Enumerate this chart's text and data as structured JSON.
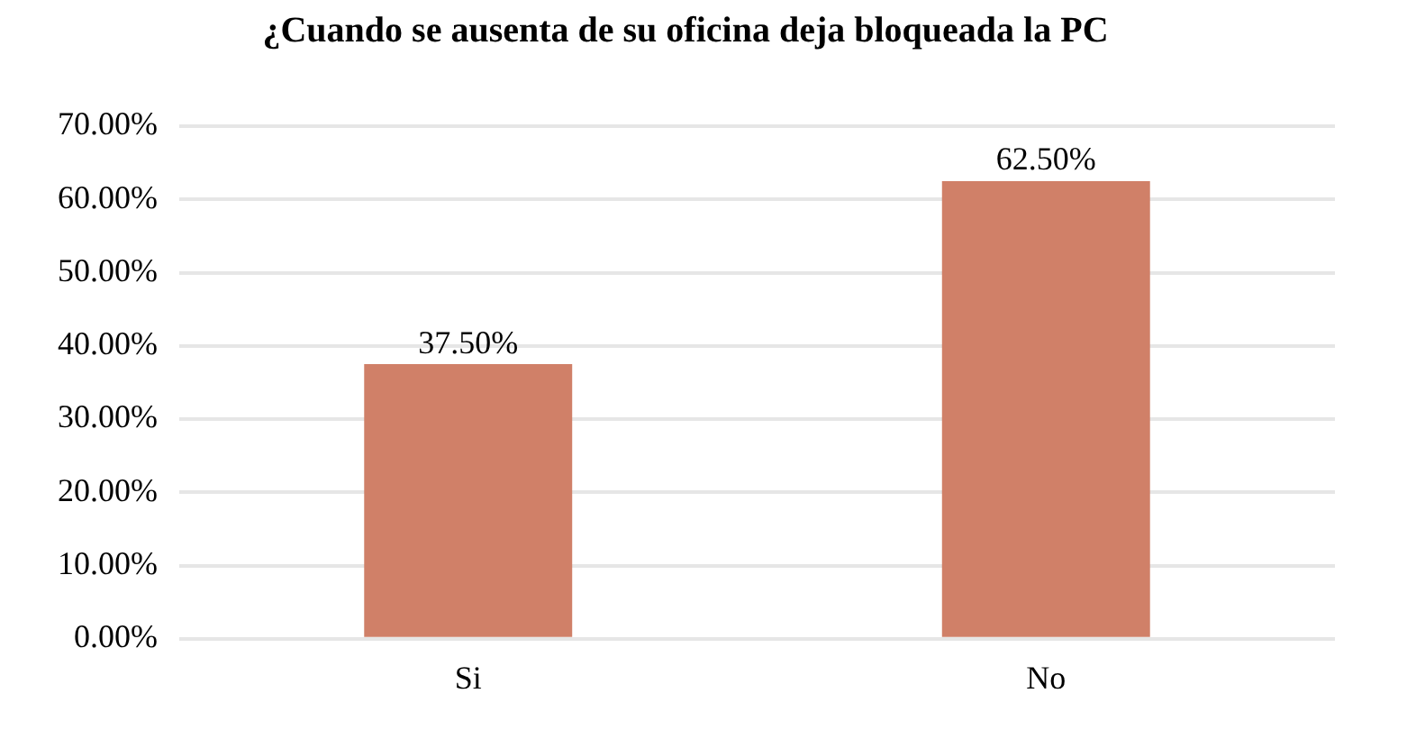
{
  "chart_data": {
    "type": "bar",
    "title": "¿Cuando se ausenta de su oficina deja bloqueada la PC",
    "categories": [
      "Si",
      "No"
    ],
    "values": [
      37.5,
      62.5
    ],
    "value_labels": [
      "37.50%",
      "62.50%"
    ],
    "color": "#d08068",
    "ylim": [
      0,
      70
    ],
    "yticks": [
      {
        "value": 0,
        "label": "0.00%"
      },
      {
        "value": 10,
        "label": "10.00%"
      },
      {
        "value": 20,
        "label": "20.00%"
      },
      {
        "value": 30,
        "label": "30.00%"
      },
      {
        "value": 40,
        "label": "40.00%"
      },
      {
        "value": 50,
        "label": "50.00%"
      },
      {
        "value": 60,
        "label": "60.00%"
      },
      {
        "value": 70,
        "label": "70.00%"
      }
    ],
    "grid": "y"
  }
}
